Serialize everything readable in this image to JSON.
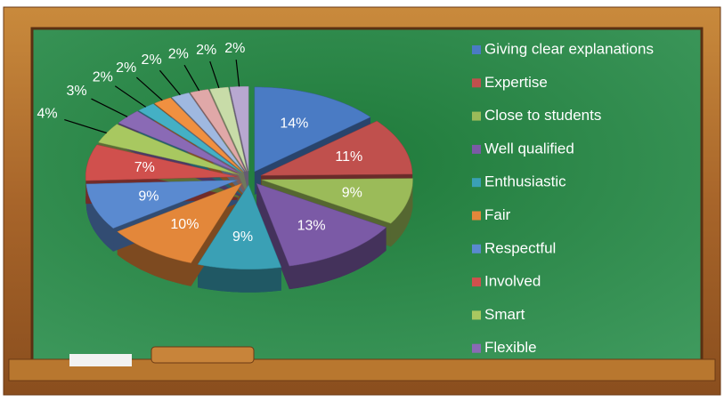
{
  "chart_data": {
    "type": "pie",
    "categories": [
      "Giving clear explanations",
      "Expertise",
      "Close to students",
      "Well qualified",
      "Enthusiastic",
      "Fair",
      "Respectful",
      "Involved",
      "Smart",
      "Flexible",
      null,
      null,
      null,
      null,
      null,
      null
    ],
    "values": [
      14,
      11,
      9,
      13,
      9,
      10,
      9,
      7,
      4,
      3,
      2,
      2,
      2,
      2,
      2,
      2
    ],
    "value_labels": [
      "14%",
      "11%",
      "9%",
      "13%",
      "9%",
      "10%",
      "9%",
      "7%",
      "4%",
      "3%",
      "2%",
      "2%",
      "2%",
      "2%",
      "2%",
      "2%"
    ],
    "colors": [
      "#4a7bc4",
      "#c0504d",
      "#9bbb59",
      "#7b5aa6",
      "#3aa0b5",
      "#e3873a",
      "#5a8ad0",
      "#d0504d",
      "#a8c860",
      "#8a6ab5",
      "#44b0c5",
      "#f09040",
      "#9fb8e0",
      "#e0a8a8",
      "#c8dca8",
      "#b8a8d0"
    ],
    "legend": "right"
  }
}
